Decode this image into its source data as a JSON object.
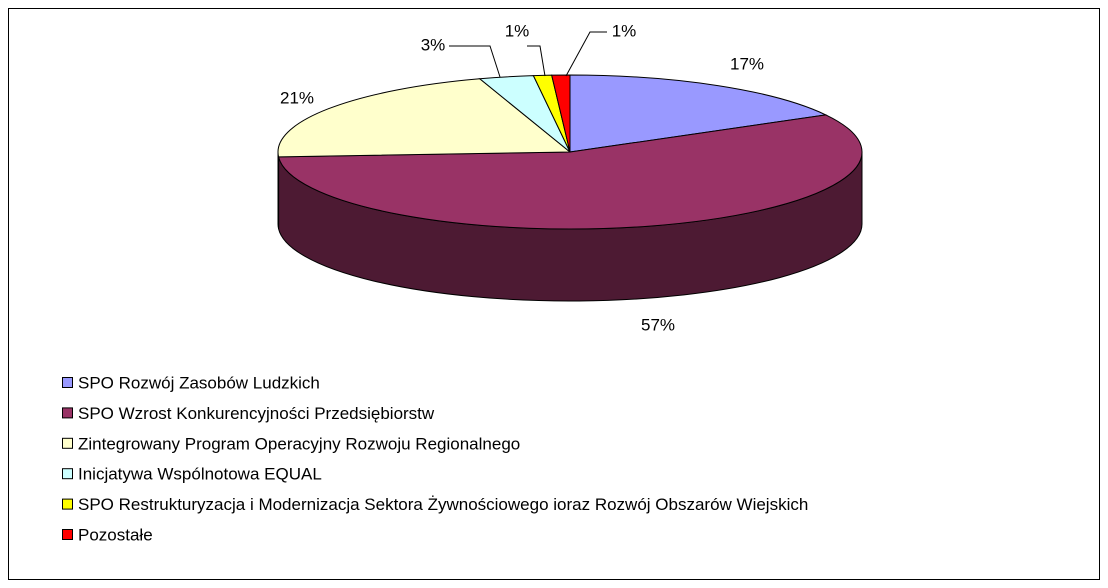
{
  "chart_data": {
    "type": "pie",
    "categories": [
      "SPO Rozwój Zasobów Ludzkich",
      "SPO Wzrost Konkurencyjności Przedsiębiorstw",
      "Zintegrowany Program Operacyjny Rozwoju Regionalnego",
      "Inicjatywa Wspólnotowa EQUAL",
      "SPO Restrukturyzacja i Modernizacja Sektora Żywnościowego ioraz Rozwój Obszarów Wiejskich",
      "Pozostałe"
    ],
    "values": [
      17,
      57,
      21,
      3,
      1,
      1
    ],
    "value_labels": [
      "17%",
      "57%",
      "21%",
      "3%",
      "1%",
      "1%"
    ],
    "colors": [
      "#9999ff",
      "#993366",
      "#ffffcc",
      "#ccffff",
      "#ffff00",
      "#ff0000"
    ]
  }
}
